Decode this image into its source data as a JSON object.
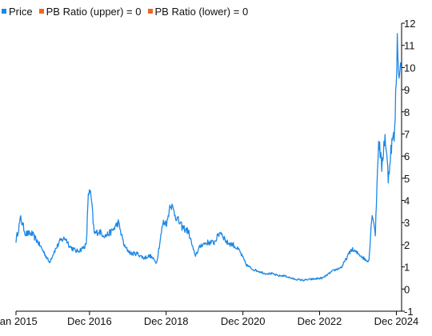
{
  "chart_data": {
    "type": "line",
    "title": "",
    "xlabel": "",
    "ylabel": "",
    "legend": {
      "placement": "top-left",
      "entries": [
        {
          "label": "Price",
          "color": "#1e88e5"
        },
        {
          "label": "PB Ratio (upper) = 0",
          "color": "#f26522"
        },
        {
          "label": "PB Ratio (lower) = 0",
          "color": "#f26522"
        }
      ]
    },
    "grid": false,
    "y_axis": {
      "position": "right",
      "ylim": [
        -1,
        12
      ],
      "ticks": [
        -1,
        0,
        1,
        2,
        3,
        4,
        5,
        6,
        7,
        8,
        9,
        10,
        11,
        12
      ],
      "tick_labels": [
        "-1",
        "0",
        "1",
        "2",
        "3",
        "4",
        "5",
        "6",
        "7",
        "8",
        "9",
        "10",
        "11",
        "12"
      ]
    },
    "x_axis": {
      "xlim": [
        "2015-01-01",
        "2025-01-20"
      ],
      "ticks": [
        "2015-01-01",
        "2016-12-01",
        "2018-12-01",
        "2020-12-01",
        "2022-12-01",
        "2024-12-01"
      ],
      "tick_labels": [
        "Jan 2015",
        "Dec 2016",
        "Dec 2018",
        "Dec 2020",
        "Dec 2022",
        "Dec 2024"
      ]
    },
    "series": [
      {
        "name": "Price",
        "color": "#1e88e5",
        "x": [
          "2015-01-01",
          "2015-02-15",
          "2015-04-01",
          "2015-06-01",
          "2015-08-01",
          "2015-10-01",
          "2015-11-15",
          "2016-01-01",
          "2016-03-01",
          "2016-04-15",
          "2016-06-01",
          "2016-08-01",
          "2016-09-15",
          "2016-11-01",
          "2016-11-20",
          "2016-12-15",
          "2017-01-15",
          "2017-03-01",
          "2017-05-01",
          "2017-07-01",
          "2017-09-01",
          "2017-11-01",
          "2018-01-01",
          "2018-03-01",
          "2018-05-01",
          "2018-07-01",
          "2018-09-01",
          "2018-11-01",
          "2018-12-10",
          "2019-01-10",
          "2019-03-01",
          "2019-05-01",
          "2019-07-01",
          "2019-09-01",
          "2019-11-01",
          "2020-01-01",
          "2020-03-01",
          "2020-05-01",
          "2020-07-01",
          "2020-09-01",
          "2020-11-01",
          "2021-01-01",
          "2021-03-01",
          "2021-05-01",
          "2021-07-01",
          "2021-09-01",
          "2021-11-01",
          "2022-01-01",
          "2022-04-01",
          "2022-07-01",
          "2022-10-01",
          "2023-01-01",
          "2023-04-01",
          "2023-07-01",
          "2023-10-01",
          "2024-01-01",
          "2024-02-15",
          "2024-03-15",
          "2024-04-15",
          "2024-05-15",
          "2024-06-15",
          "2024-07-15",
          "2024-08-15",
          "2024-09-15",
          "2024-10-15",
          "2024-11-15",
          "2024-12-10",
          "2025-01-01",
          "2025-01-15"
        ],
        "values": [
          2.2,
          3.2,
          2.5,
          2.5,
          2.1,
          1.6,
          1.2,
          1.7,
          2.2,
          2.3,
          1.9,
          1.7,
          1.8,
          2.0,
          4.4,
          4.2,
          2.5,
          2.6,
          2.4,
          2.6,
          3.0,
          1.9,
          1.6,
          1.6,
          1.4,
          1.5,
          1.2,
          3.0,
          3.0,
          3.9,
          3.3,
          2.8,
          2.6,
          1.5,
          2.0,
          2.1,
          2.1,
          2.6,
          2.1,
          2.0,
          1.7,
          1.1,
          0.9,
          0.8,
          0.7,
          0.7,
          0.6,
          0.6,
          0.45,
          0.4,
          0.45,
          0.5,
          0.8,
          1.0,
          1.8,
          1.5,
          1.3,
          1.3,
          3.5,
          2.5,
          6.8,
          5.5,
          7.0,
          5.0,
          6.5,
          7.0,
          11.2,
          9.5,
          10.0
        ]
      }
    ]
  }
}
